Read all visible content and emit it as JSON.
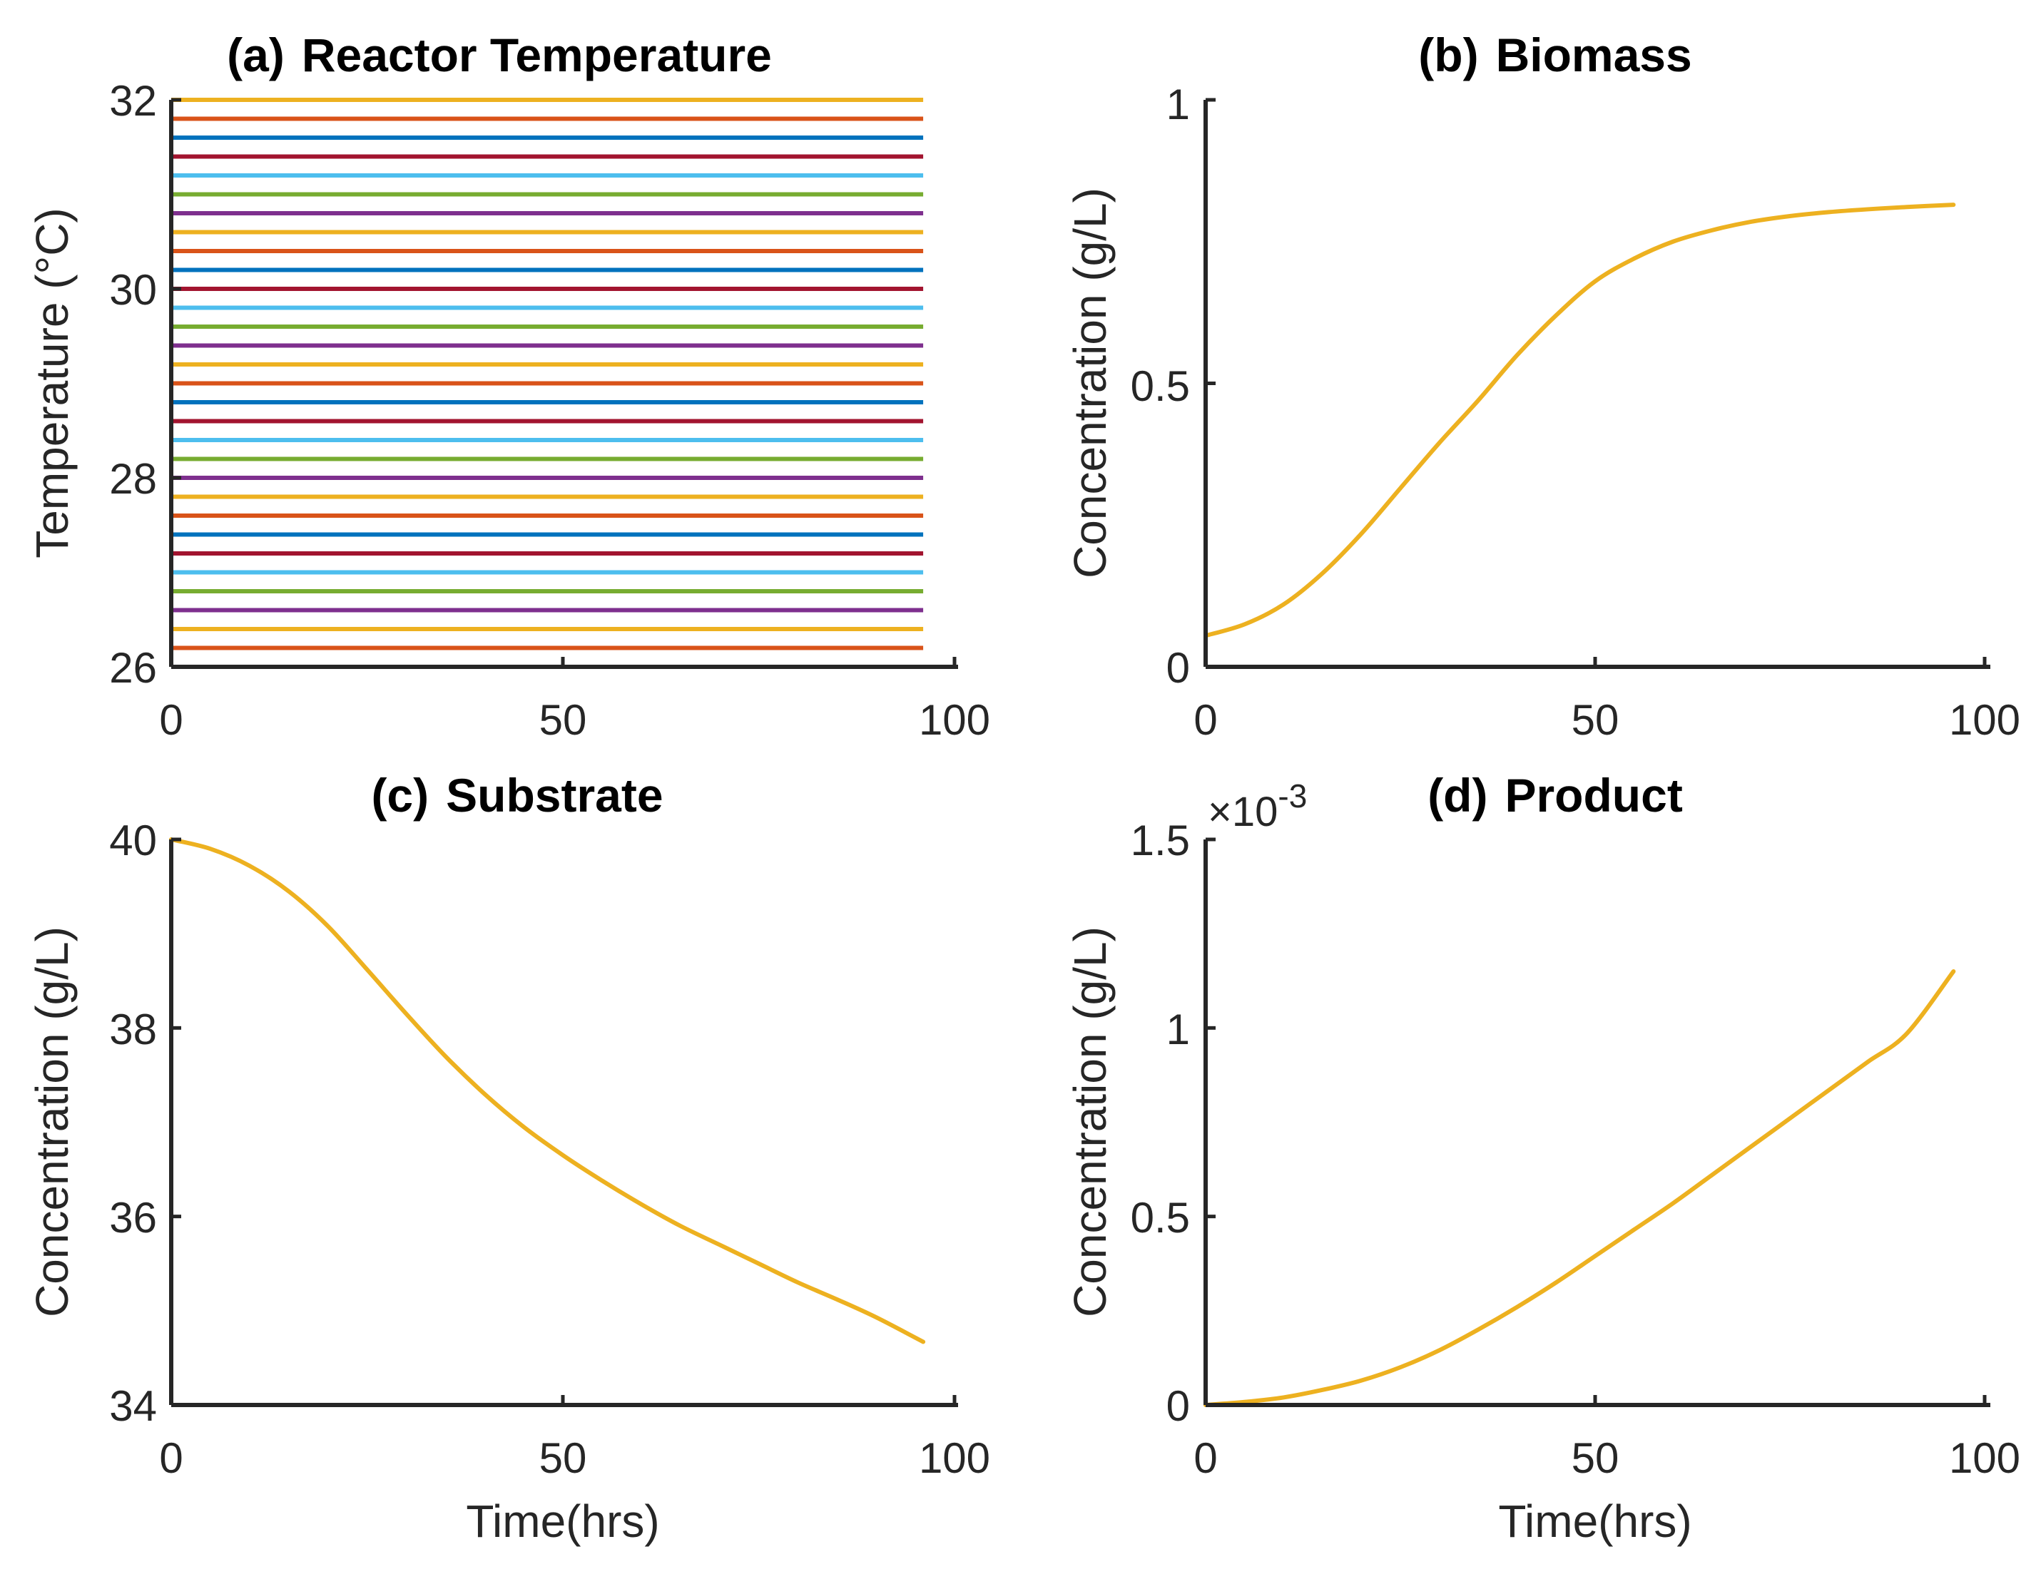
{
  "colors": {
    "series": "#EDB120",
    "axis": "#262626",
    "temperature_cycle": [
      "#0072BD",
      "#D95319",
      "#EDB120",
      "#7E2F8E",
      "#77AC30",
      "#4DBEEE",
      "#A2142F"
    ]
  },
  "chart_data": [
    {
      "id": "a",
      "type": "line",
      "title_tag": "(a)",
      "title": "Reactor Temperature",
      "xlabel": "",
      "ylabel": "Temperature (°C)",
      "xlim": [
        0,
        100
      ],
      "ylim": [
        26,
        32
      ],
      "xticks": [
        0,
        50,
        100
      ],
      "yticks": [
        26,
        28,
        30,
        32
      ],
      "xtick_labels": [
        "0",
        "50",
        "100"
      ],
      "ytick_labels": [
        "26",
        "28",
        "30",
        "32"
      ],
      "x_end": 96,
      "levels": [
        26.0,
        26.2,
        26.4,
        26.6,
        26.8,
        27.0,
        27.2,
        27.4,
        27.6,
        27.8,
        28.0,
        28.2,
        28.4,
        28.6,
        28.8,
        29.0,
        29.2,
        29.4,
        29.6,
        29.8,
        30.0,
        30.2,
        30.4,
        30.6,
        30.8,
        31.0,
        31.2,
        31.4,
        31.6,
        31.8,
        32.0
      ]
    },
    {
      "id": "b",
      "type": "line",
      "title_tag": "(b)",
      "title": "Biomass",
      "xlabel": "",
      "ylabel": "Concentration (g/L)",
      "xlim": [
        0,
        100
      ],
      "ylim": [
        0,
        1
      ],
      "xticks": [
        0,
        50,
        100
      ],
      "yticks": [
        0,
        0.5,
        1
      ],
      "xtick_labels": [
        "0",
        "50",
        "100"
      ],
      "ytick_labels": [
        "0",
        "0.5",
        "1"
      ],
      "x": [
        0,
        5,
        10,
        15,
        20,
        25,
        30,
        35,
        40,
        45,
        50,
        55,
        60,
        65,
        70,
        75,
        80,
        85,
        90,
        96
      ],
      "y": [
        0.055,
        0.075,
        0.11,
        0.165,
        0.235,
        0.315,
        0.395,
        0.47,
        0.55,
        0.62,
        0.68,
        0.72,
        0.75,
        0.77,
        0.785,
        0.795,
        0.802,
        0.807,
        0.811,
        0.815
      ]
    },
    {
      "id": "c",
      "type": "line",
      "title_tag": "(c)",
      "title": "Substrate",
      "xlabel": "Time(hrs)",
      "ylabel": "Concentration (g/L)",
      "xlim": [
        0,
        100
      ],
      "ylim": [
        34,
        40
      ],
      "xticks": [
        0,
        50,
        100
      ],
      "yticks": [
        34,
        36,
        38,
        40
      ],
      "xtick_labels": [
        "0",
        "50",
        "100"
      ],
      "ytick_labels": [
        "34",
        "36",
        "38",
        "40"
      ],
      "x": [
        0,
        5,
        10,
        15,
        20,
        25,
        30,
        35,
        40,
        45,
        50,
        55,
        60,
        65,
        70,
        75,
        80,
        85,
        90,
        96
      ],
      "y": [
        40.0,
        39.9,
        39.72,
        39.45,
        39.08,
        38.62,
        38.15,
        37.7,
        37.3,
        36.95,
        36.65,
        36.38,
        36.13,
        35.9,
        35.7,
        35.5,
        35.3,
        35.12,
        34.93,
        34.67
      ]
    },
    {
      "id": "d",
      "type": "line",
      "title_tag": "(d)",
      "title": "Product",
      "xlabel": "Time(hrs)",
      "ylabel": "Concentration (g/L)",
      "xlim": [
        0,
        100
      ],
      "ylim": [
        0,
        1.5
      ],
      "xticks": [
        0,
        50,
        100
      ],
      "yticks": [
        0,
        0.5,
        1,
        1.5
      ],
      "xtick_labels": [
        "0",
        "50",
        "100"
      ],
      "ytick_labels": [
        "0",
        "0.5",
        "1",
        "1.5"
      ],
      "exponent_prefix": "×10",
      "exponent": "-3",
      "x": [
        0,
        5,
        10,
        15,
        20,
        25,
        30,
        35,
        40,
        45,
        50,
        55,
        60,
        65,
        70,
        75,
        80,
        85,
        90,
        96
      ],
      "y": [
        0.0,
        0.008,
        0.02,
        0.04,
        0.065,
        0.1,
        0.145,
        0.2,
        0.26,
        0.325,
        0.395,
        0.465,
        0.535,
        0.61,
        0.685,
        0.76,
        0.835,
        0.91,
        0.985,
        1.15
      ]
    }
  ]
}
